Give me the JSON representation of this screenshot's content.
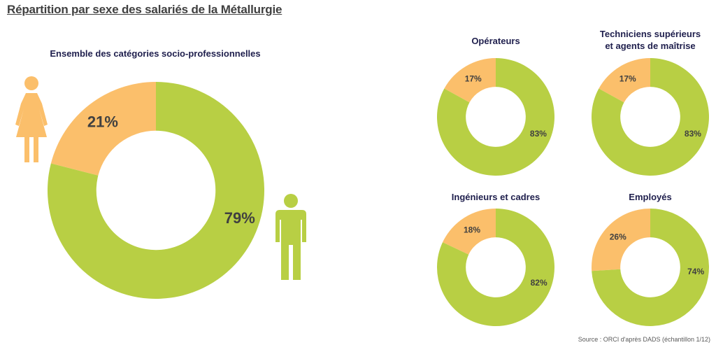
{
  "page_title": "Répartition par sexe des salariés de la Métallurgie",
  "source": "Source : ORCI d'après DADS (échantillon 1/12)",
  "colors": {
    "men": "#b8cf44",
    "women": "#fbbf6b",
    "title": "#1f1f4d",
    "label": "#404040"
  },
  "icons": {
    "woman": "woman-icon",
    "man": "man-icon"
  },
  "chart_data": [
    {
      "type": "pie",
      "title": "Ensemble des catégories socio-professionnelles",
      "slices": [
        {
          "value": 21,
          "label": "21%"
        },
        {
          "value": 79,
          "label": "79%"
        }
      ]
    },
    {
      "type": "pie",
      "title": "Opérateurs",
      "slices": [
        {
          "value": 17,
          "label": "17%"
        },
        {
          "value": 83,
          "label": "83%"
        }
      ]
    },
    {
      "type": "pie",
      "title": "Techniciens supérieurs",
      "title_line2": "et agents de maîtrise",
      "slices": [
        {
          "value": 17,
          "label": "17%"
        },
        {
          "value": 83,
          "label": "83%"
        }
      ]
    },
    {
      "type": "pie",
      "title": "Ingénieurs et cadres",
      "slices": [
        {
          "value": 18,
          "label": "18%"
        },
        {
          "value": 82,
          "label": "82%"
        }
      ]
    },
    {
      "type": "pie",
      "title": "Employés",
      "slices": [
        {
          "value": 26,
          "label": "26%"
        },
        {
          "value": 74,
          "label": "74%"
        }
      ]
    }
  ]
}
